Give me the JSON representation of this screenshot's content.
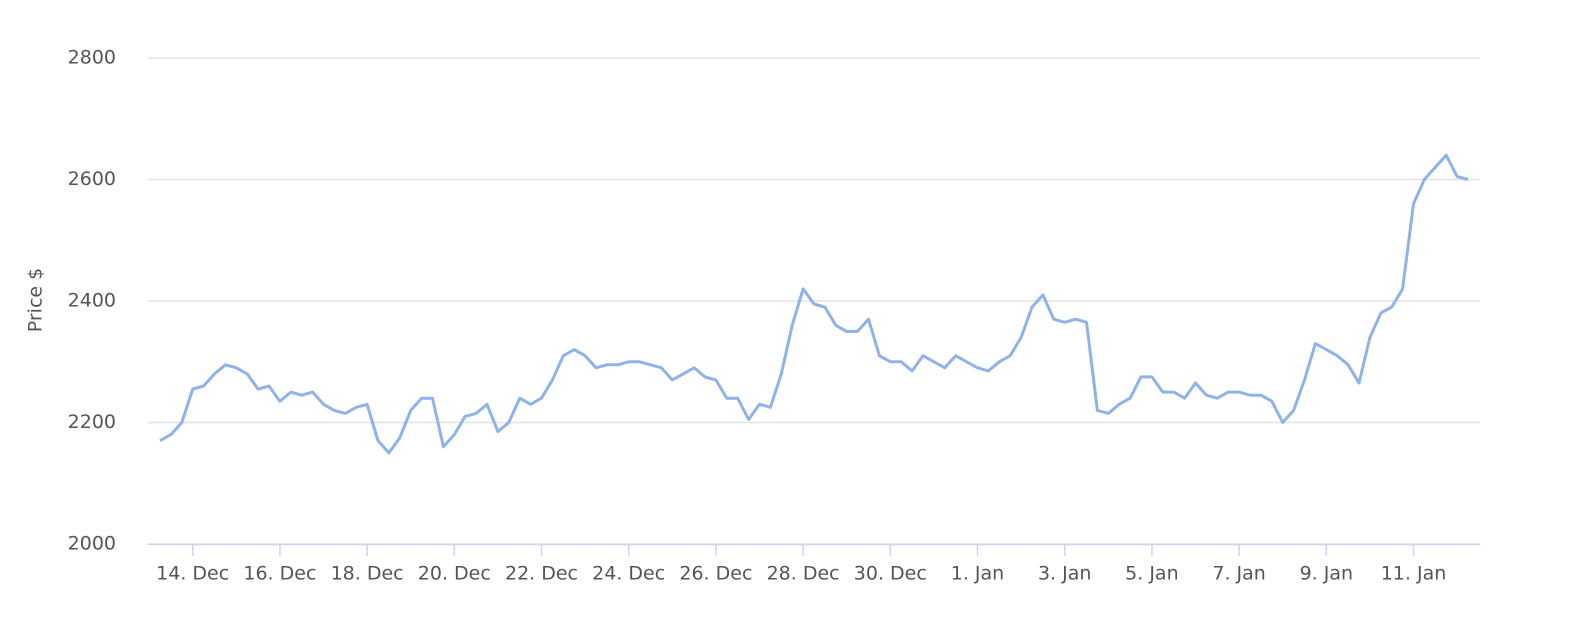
{
  "chart_data": {
    "type": "line",
    "y_label": "Price $",
    "color": "#8db3e8",
    "ylim": [
      2000,
      2800
    ],
    "yticks": [
      2000,
      2200,
      2400,
      2600,
      2800
    ],
    "grid": true,
    "categories": [
      null,
      null,
      null,
      "14. Dec",
      null,
      null,
      null,
      null,
      null,
      null,
      null,
      "16. Dec",
      null,
      null,
      null,
      null,
      null,
      null,
      null,
      "18. Dec",
      null,
      null,
      null,
      null,
      null,
      null,
      null,
      "20. Dec",
      null,
      null,
      null,
      null,
      null,
      null,
      null,
      "22. Dec",
      null,
      null,
      null,
      null,
      null,
      null,
      null,
      "24. Dec",
      null,
      null,
      null,
      null,
      null,
      null,
      null,
      "26. Dec",
      null,
      null,
      null,
      null,
      null,
      null,
      null,
      "28. Dec",
      null,
      null,
      null,
      null,
      null,
      null,
      null,
      "30. Dec",
      null,
      null,
      null,
      null,
      null,
      null,
      null,
      "1. Jan",
      null,
      null,
      null,
      null,
      null,
      null,
      null,
      "3. Jan",
      null,
      null,
      null,
      null,
      null,
      null,
      null,
      "5. Jan",
      null,
      null,
      null,
      null,
      null,
      null,
      null,
      "7. Jan",
      null,
      null,
      null,
      null,
      null,
      null,
      null,
      "9. Jan",
      null,
      null,
      null,
      null,
      null,
      null,
      null,
      "11. Jan",
      null,
      null,
      null,
      null,
      null
    ],
    "values": [
      2170,
      2180,
      2200,
      2255,
      2260,
      2280,
      2295,
      2290,
      2280,
      2255,
      2260,
      2235,
      2250,
      2245,
      2250,
      2230,
      2220,
      2215,
      2225,
      2230,
      2170,
      2150,
      2175,
      2220,
      2240,
      2240,
      2160,
      2180,
      2210,
      2215,
      2230,
      2185,
      2200,
      2240,
      2230,
      2240,
      2270,
      2310,
      2320,
      2310,
      2290,
      2295,
      2295,
      2300,
      2300,
      2295,
      2290,
      2270,
      2280,
      2290,
      2275,
      2270,
      2240,
      2240,
      2205,
      2230,
      2225,
      2280,
      2360,
      2420,
      2395,
      2390,
      2360,
      2350,
      2350,
      2370,
      2310,
      2300,
      2300,
      2285,
      2310,
      2300,
      2290,
      2310,
      2300,
      2290,
      2285,
      2300,
      2310,
      2340,
      2390,
      2410,
      2370,
      2365,
      2370,
      2365,
      2220,
      2215,
      2230,
      2240,
      2275,
      2275,
      2250,
      2250,
      2240,
      2265,
      2245,
      2240,
      2250,
      2250,
      2245,
      2245,
      2235,
      2200,
      2220,
      2270,
      2330,
      2320,
      2310,
      2295,
      2265,
      2340,
      2380,
      2390,
      2420,
      2560,
      2600,
      2620,
      2640,
      2605,
      2600
    ]
  }
}
